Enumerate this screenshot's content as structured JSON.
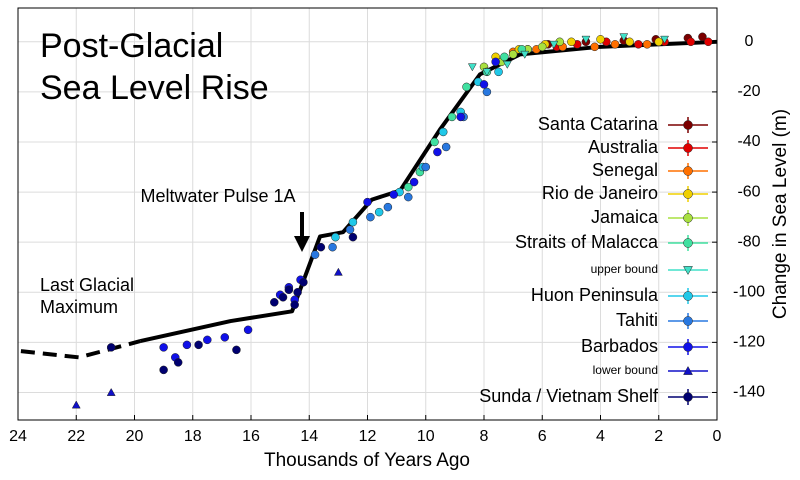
{
  "chart_data": {
    "type": "scatter",
    "title_lines": [
      "Post-Glacial",
      "Sea Level Rise"
    ],
    "x_label": "Thousands of Years Ago",
    "y_label": "Change in Sea Level (m)",
    "annotations": [
      {
        "text": "Meltwater Pulse 1A"
      },
      {
        "lines": [
          "Last Glacial",
          "Maximum"
        ]
      }
    ],
    "xlim": [
      24,
      0
    ],
    "ylim": [
      -151,
      13.5
    ],
    "xticks": [
      24,
      22,
      20,
      18,
      16,
      14,
      12,
      10,
      8,
      6,
      4,
      2,
      0
    ],
    "yticks": [
      0,
      -20,
      -40,
      -60,
      -80,
      -100,
      -120,
      -140
    ],
    "grid": true,
    "fit": {
      "color": "#000000",
      "x": [
        19.8,
        16.7,
        14.59,
        13.63,
        12.84,
        11.85,
        10.88,
        9.51,
        8.14,
        6.76,
        4.02,
        0
      ],
      "y": [
        -119.5,
        -111.5,
        -107.6,
        -77.7,
        -76,
        -63,
        -59.4,
        -35,
        -13,
        -5,
        -2,
        0
      ]
    },
    "extrapolation": {
      "color": "#000000",
      "x": [
        23.9,
        21.9,
        19.8
      ],
      "y": [
        -123.5,
        -126,
        -119.5
      ]
    },
    "series": [
      {
        "name": "Santa Catarina",
        "color": "#7b0000",
        "marker": "circle",
        "x": [
          5.8,
          4.5,
          3.2,
          2.1,
          1.0,
          0.5
        ],
        "values": [
          -1,
          0,
          0.5,
          1,
          1.5,
          2
        ]
      },
      {
        "name": "Australia",
        "color": "#e00000",
        "marker": "circle",
        "x": [
          6.5,
          5.5,
          4.8,
          3.8,
          2.7,
          1.8,
          0.9,
          0.3
        ],
        "values": [
          -3,
          -2,
          -1,
          0,
          -1,
          0,
          0,
          0
        ]
      },
      {
        "name": "Senegal",
        "color": "#ff7000",
        "marker": "circle",
        "x": [
          7.0,
          6.2,
          5.3,
          4.2,
          3.5,
          2.4
        ],
        "values": [
          -4,
          -3,
          -2,
          -2,
          -1,
          -1
        ]
      },
      {
        "name": "Rio de Janeiro",
        "color": "#f0d000",
        "marker": "circle",
        "x": [
          7.6,
          6.8,
          5.9,
          5.0,
          4.0,
          3.0,
          2.0
        ],
        "values": [
          -6,
          -3,
          -1,
          0,
          1,
          0,
          0
        ]
      },
      {
        "name": "Jamaica",
        "color": "#a8e040",
        "marker": "circle",
        "x": [
          8.0,
          7.4,
          7.0,
          6.5,
          6.0,
          5.4
        ],
        "values": [
          -10,
          -8,
          -5,
          -3,
          -2,
          0
        ]
      },
      {
        "name": "Straits of Malacca",
        "color": "#40e0a0",
        "marker": "circle",
        "x": [
          10.6,
          10.2,
          9.7,
          9.1,
          8.6,
          7.9,
          7.3,
          6.7
        ],
        "values": [
          -58,
          -52,
          -40,
          -30,
          -18,
          -12,
          -6,
          -3
        ]
      },
      {
        "name": "upper bound",
        "color": "#40e0c8",
        "marker": "triangle-down",
        "x": [
          8.4,
          7.9,
          7.2,
          6.6,
          5.6,
          4.5,
          3.2,
          1.8
        ],
        "values": [
          -10,
          -12,
          -9,
          -5,
          -1,
          1,
          2,
          1
        ]
      },
      {
        "name": "Huon Peninsula",
        "color": "#20c8e8",
        "marker": "circle",
        "x": [
          13.1,
          12.5,
          11.6,
          10.9,
          10.1,
          9.4,
          8.8,
          8.2,
          7.5
        ],
        "values": [
          -78,
          -72,
          -68,
          -60,
          -50,
          -36,
          -28,
          -16,
          -12
        ]
      },
      {
        "name": "Tahiti",
        "color": "#2878e0",
        "marker": "circle",
        "x": [
          13.8,
          13.2,
          12.6,
          11.9,
          11.3,
          10.6,
          10.0,
          9.3,
          8.7,
          7.9
        ],
        "values": [
          -85,
          -82,
          -75,
          -70,
          -66,
          -62,
          -50,
          -42,
          -30,
          -20
        ]
      },
      {
        "name": "Barbados",
        "color": "#1010e8",
        "marker": "circle",
        "x": [
          19.0,
          18.6,
          18.2,
          17.5,
          16.9,
          16.1,
          15.0,
          14.7,
          14.5,
          14.3,
          12.0,
          11.1,
          10.4,
          9.6,
          8.8,
          8.0,
          7.6
        ],
        "values": [
          -122,
          -126,
          -121,
          -119,
          -118,
          -115,
          -101,
          -98,
          -103,
          -95,
          -64,
          -61,
          -56,
          -44,
          -30,
          -17,
          -8
        ]
      },
      {
        "name": "lower bound",
        "color": "#1010c8",
        "marker": "triangle-up",
        "x": [
          22.0,
          20.8,
          13.0
        ],
        "values": [
          -145,
          -140,
          -92
        ]
      },
      {
        "name": "Sunda / Vietnam Shelf",
        "color": "#000070",
        "marker": "circle",
        "x": [
          20.8,
          19.0,
          18.5,
          17.8,
          16.5,
          15.2,
          14.9,
          14.7,
          14.5,
          14.4,
          14.2,
          13.6,
          12.5
        ],
        "values": [
          -122,
          -131,
          -128,
          -121,
          -123,
          -104,
          -102,
          -99,
          -105,
          -100,
          -96,
          -82,
          -78
        ]
      }
    ]
  }
}
